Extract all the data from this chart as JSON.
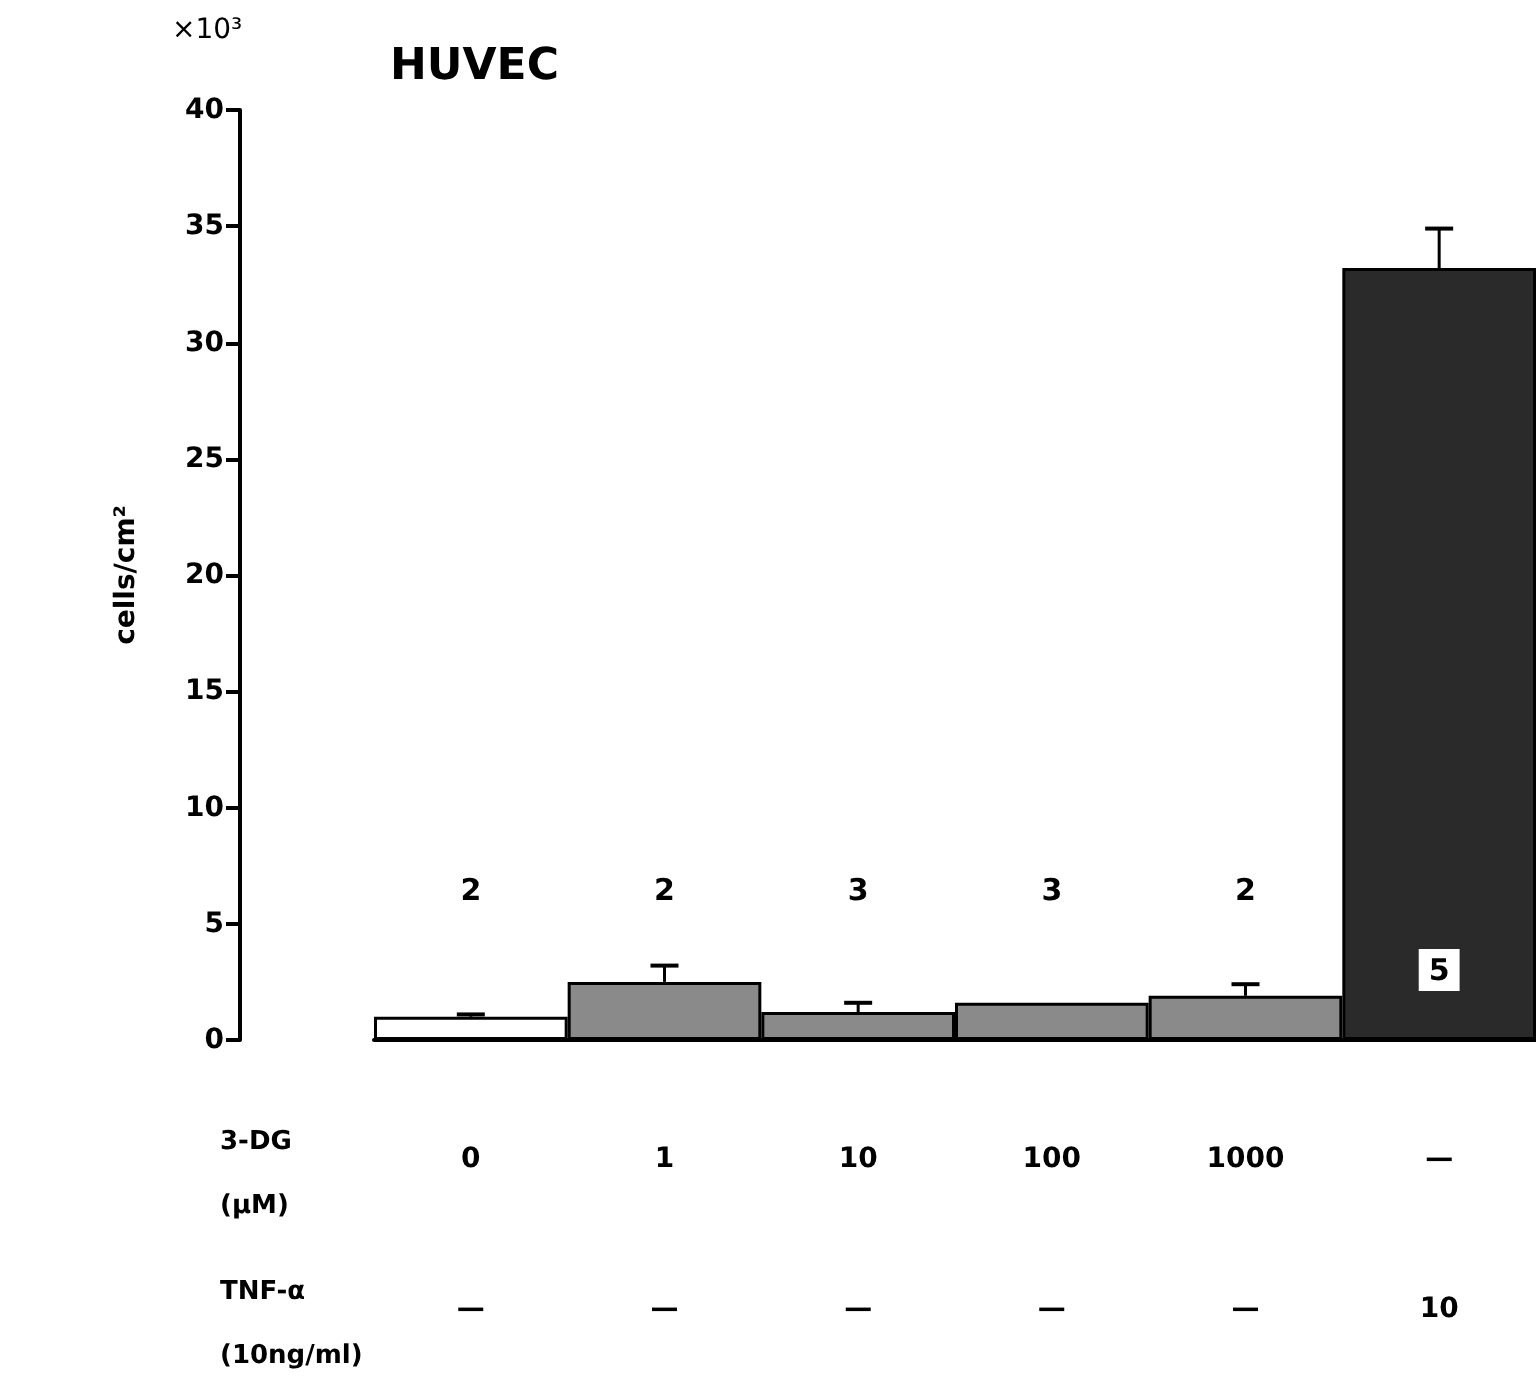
{
  "chart_data": {
    "type": "bar",
    "title": "HUVEC",
    "ylabel": "cells/cm²",
    "categories": [
      "0\n—",
      "1\n—",
      "10\n—",
      "100\n—",
      "1000\n—",
      "—\n10"
    ],
    "values": [
      1.0,
      2.5,
      1.2,
      1.6,
      1.9,
      33.2
    ],
    "colors": [
      "#ffffff",
      "#8a8a8a",
      "#8a8a8a",
      "#8a8a8a",
      "#8a8a8a",
      "#2a2a2a"
    ],
    "errors": [
      [
        1.0,
        1.1
      ],
      [
        2.5,
        3.2
      ],
      [
        1.2,
        1.6
      ],
      null,
      [
        1.9,
        2.4
      ],
      [
        33.2,
        34.9
      ]
    ],
    "ylim": [
      0,
      40
    ],
    "yticks": [
      0,
      5,
      10,
      15,
      20,
      25,
      30,
      35,
      40
    ],
    "grid": false,
    "annotations": [
      "×10³",
      "3-DG\n(μM)",
      "TNF-α\n(10ng/ml)",
      "2",
      "2",
      "3",
      "3",
      "2",
      "5"
    ]
  }
}
